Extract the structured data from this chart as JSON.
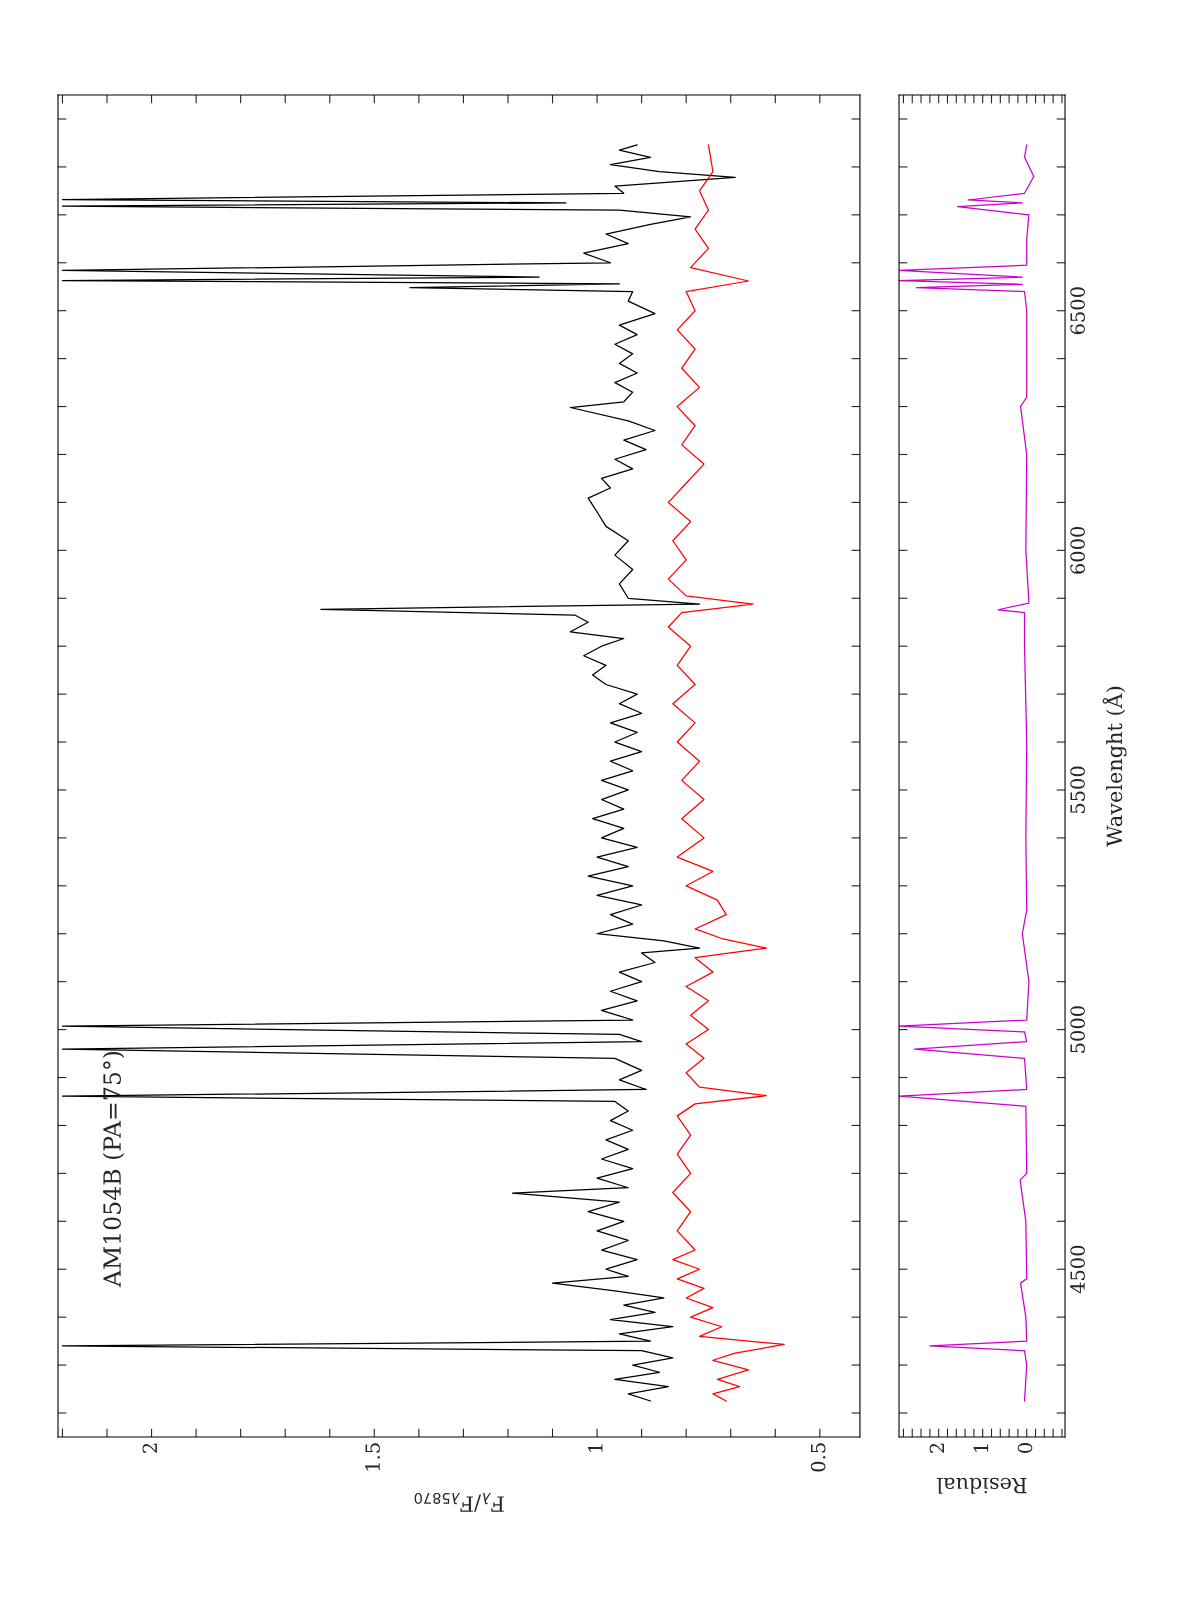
{
  "chart_data": [
    {
      "type": "line",
      "orientation": "horizontal",
      "xlabel": "F$_{λ}$/F$_{λ5870}$",
      "annotations": [
        "AM1054B (PA=75°)"
      ],
      "xlim": [
        2.21,
        0.41
      ],
      "xticks": [
        {
          "value": 2.2,
          "label": null
        },
        {
          "value": 2.1,
          "label": null
        },
        2,
        {
          "value": 1.9,
          "label": null
        },
        {
          "value": 1.8,
          "label": null
        },
        {
          "value": 1.7,
          "label": null
        },
        {
          "value": 1.6,
          "label": null
        },
        1.5,
        {
          "value": 1.4,
          "label": null
        },
        {
          "value": 1.3,
          "label": null
        },
        {
          "value": 1.2,
          "label": null
        },
        {
          "value": 1.1,
          "label": null
        },
        1,
        {
          "value": 0.9,
          "label": null
        },
        {
          "value": 0.8,
          "label": null
        },
        {
          "value": 0.7,
          "label": null
        },
        {
          "value": 0.6,
          "label": null
        },
        0.5
      ],
      "ylim": [
        4150,
        6950
      ],
      "yticks": [
        {
          "value": 4200,
          "label": null
        },
        {
          "value": 4300,
          "label": null
        },
        {
          "value": 4400,
          "label": null
        },
        4500,
        {
          "value": 4600,
          "label": null
        },
        {
          "value": 4700,
          "label": null
        },
        {
          "value": 4800,
          "label": null
        },
        {
          "value": 4900,
          "label": null
        },
        5000,
        {
          "value": 5100,
          "label": null
        },
        {
          "value": 5200,
          "label": null
        },
        {
          "value": 5300,
          "label": null
        },
        {
          "value": 5400,
          "label": null
        },
        5500,
        {
          "value": 5600,
          "label": null
        },
        {
          "value": 5700,
          "label": null
        },
        {
          "value": 5800,
          "label": null
        },
        {
          "value": 5900,
          "label": null
        },
        6000,
        {
          "value": 6100,
          "label": null
        },
        {
          "value": 6200,
          "label": null
        },
        {
          "value": 6300,
          "label": null
        },
        {
          "value": 6400,
          "label": null
        },
        6500,
        {
          "value": 6600,
          "label": null
        },
        {
          "value": 6700,
          "label": null
        },
        {
          "value": 6800,
          "label": null
        },
        {
          "value": 6900,
          "label": null
        }
      ],
      "tick_labels": "x",
      "series": [
        {
          "color": "#000000",
          "x": [
            4225,
            4240,
            4255,
            4270,
            4285,
            4300,
            4315,
            4330,
            4340,
            4350,
            4365,
            4380,
            4395,
            4410,
            4425,
            4440,
            4455,
            4471,
            4485,
            4500,
            4520,
            4540,
            4560,
            4580,
            4600,
            4620,
            4640,
            4659,
            4670,
            4690,
            4710,
            4730,
            4750,
            4770,
            4790,
            4810,
            4830,
            4850,
            4861,
            4875,
            4895,
            4915,
            4940,
            4959,
            4975,
            4990,
            5007,
            5020,
            5040,
            5060,
            5080,
            5100,
            5120,
            5140,
            5160,
            5170,
            5185,
            5200,
            5220,
            5240,
            5260,
            5280,
            5300,
            5320,
            5340,
            5360,
            5380,
            5400,
            5420,
            5440,
            5460,
            5480,
            5500,
            5520,
            5540,
            5560,
            5580,
            5600,
            5620,
            5640,
            5660,
            5680,
            5700,
            5720,
            5740,
            5760,
            5780,
            5800,
            5816,
            5830,
            5850,
            5865,
            5877,
            5888,
            5900,
            5930,
            5960,
            5990,
            6020,
            6050,
            6080,
            6109,
            6130,
            6150,
            6170,
            6190,
            6210,
            6230,
            6250,
            6270,
            6298,
            6310,
            6330,
            6350,
            6370,
            6390,
            6410,
            6430,
            6450,
            6470,
            6494,
            6520,
            6540,
            6548,
            6556,
            6563,
            6570,
            6584,
            6600,
            6620,
            6640,
            6660,
            6680,
            6696,
            6710,
            6718,
            6725,
            6732,
            6745,
            6760,
            6778,
            6790,
            6805,
            6820,
            6835,
            6846
          ],
          "values": [
            0.88,
            0.93,
            0.84,
            0.96,
            0.86,
            0.92,
            0.83,
            0.9,
            2.2,
            0.88,
            0.95,
            0.83,
            0.97,
            0.87,
            0.94,
            0.85,
            0.96,
            1.1,
            0.93,
            0.98,
            0.91,
            0.99,
            0.93,
            1.0,
            0.94,
            1.02,
            0.95,
            1.19,
            0.93,
            1.0,
            0.92,
            0.99,
            0.93,
            0.98,
            0.92,
            0.97,
            0.93,
            0.96,
            2.2,
            0.89,
            0.95,
            0.9,
            0.96,
            2.2,
            0.9,
            0.95,
            2.2,
            0.92,
            0.99,
            0.91,
            0.97,
            0.9,
            0.95,
            0.87,
            0.9,
            0.77,
            0.85,
            1.0,
            0.92,
            0.97,
            0.9,
            1.0,
            0.92,
            1.02,
            0.93,
            1.0,
            0.91,
            0.99,
            0.94,
            1.01,
            0.94,
            0.99,
            0.93,
            0.99,
            0.92,
            0.97,
            0.9,
            0.96,
            0.91,
            0.97,
            0.9,
            0.95,
            0.91,
            0.98,
            1.01,
            0.98,
            1.03,
            0.99,
            0.94,
            1.06,
            1.02,
            1.05,
            1.62,
            0.77,
            0.93,
            0.95,
            0.92,
            0.96,
            0.93,
            0.98,
            1.0,
            1.02,
            0.97,
            0.99,
            0.92,
            0.96,
            0.89,
            0.94,
            0.87,
            0.93,
            1.06,
            0.94,
            0.92,
            0.96,
            0.91,
            0.95,
            0.92,
            0.96,
            0.91,
            0.95,
            0.87,
            0.93,
            0.92,
            1.42,
            0.95,
            2.2,
            1.13,
            2.2,
            0.97,
            1.03,
            0.93,
            0.98,
            0.88,
            0.79,
            0.95,
            2.2,
            1.07,
            2.2,
            0.94,
            0.96,
            0.69,
            0.86,
            0.97,
            0.88,
            0.95,
            0.91
          ]
        },
        {
          "color": "#ff0000",
          "x": [
            4225,
            4240,
            4255,
            4270,
            4290,
            4310,
            4325,
            4343,
            4360,
            4380,
            4400,
            4420,
            4440,
            4460,
            4480,
            4500,
            4520,
            4540,
            4580,
            4620,
            4660,
            4700,
            4740,
            4780,
            4820,
            4845,
            4862,
            4880,
            4910,
            4940,
            4970,
            5000,
            5030,
            5060,
            5090,
            5120,
            5150,
            5170,
            5190,
            5210,
            5240,
            5270,
            5300,
            5330,
            5360,
            5400,
            5440,
            5480,
            5520,
            5560,
            5600,
            5640,
            5680,
            5720,
            5760,
            5800,
            5840,
            5870,
            5888,
            5905,
            5940,
            5980,
            6020,
            6060,
            6100,
            6140,
            6180,
            6220,
            6260,
            6300,
            6340,
            6380,
            6420,
            6460,
            6500,
            6540,
            6562,
            6590,
            6630,
            6670,
            6710,
            6750,
            6790,
            6846
          ],
          "values": [
            0.71,
            0.74,
            0.68,
            0.73,
            0.66,
            0.74,
            0.69,
            0.58,
            0.77,
            0.72,
            0.79,
            0.74,
            0.8,
            0.76,
            0.82,
            0.77,
            0.83,
            0.78,
            0.82,
            0.79,
            0.83,
            0.79,
            0.82,
            0.79,
            0.82,
            0.78,
            0.62,
            0.77,
            0.8,
            0.76,
            0.8,
            0.75,
            0.79,
            0.75,
            0.8,
            0.74,
            0.78,
            0.62,
            0.72,
            0.78,
            0.71,
            0.73,
            0.8,
            0.74,
            0.82,
            0.76,
            0.81,
            0.76,
            0.81,
            0.77,
            0.82,
            0.78,
            0.83,
            0.78,
            0.82,
            0.79,
            0.84,
            0.81,
            0.65,
            0.8,
            0.84,
            0.8,
            0.83,
            0.79,
            0.84,
            0.8,
            0.76,
            0.81,
            0.78,
            0.82,
            0.77,
            0.81,
            0.78,
            0.82,
            0.78,
            0.8,
            0.66,
            0.79,
            0.75,
            0.78,
            0.75,
            0.77,
            0.74,
            0.75
          ]
        }
      ]
    },
    {
      "type": "line",
      "orientation": "horizontal",
      "xlabel": "Residual",
      "ylabel": "Wavelenght (Å)",
      "xlim": [
        2.9,
        -0.87
      ],
      "xticks": [
        {
          "value": 2.8,
          "label": null
        },
        {
          "value": 2.6,
          "label": null
        },
        {
          "value": 2.4,
          "label": null
        },
        {
          "value": 2.2,
          "label": null
        },
        2,
        {
          "value": 1.8,
          "label": null
        },
        {
          "value": 1.6,
          "label": null
        },
        {
          "value": 1.4,
          "label": null
        },
        {
          "value": 1.2,
          "label": null
        },
        1,
        {
          "value": 0.8,
          "label": null
        },
        {
          "value": 0.6,
          "label": null
        },
        {
          "value": 0.4,
          "label": null
        },
        {
          "value": 0.2,
          "label": null
        },
        0,
        {
          "value": -0.2,
          "label": null
        },
        {
          "value": -0.4,
          "label": null
        },
        {
          "value": -0.6,
          "label": null
        },
        {
          "value": -0.8,
          "label": null
        }
      ],
      "ylim": [
        4150,
        6950
      ],
      "yticks": [
        {
          "value": 4200,
          "label": null
        },
        {
          "value": 4300,
          "label": null
        },
        {
          "value": 4400,
          "label": null
        },
        4500,
        {
          "value": 4600,
          "label": null
        },
        {
          "value": 4700,
          "label": null
        },
        {
          "value": 4800,
          "label": null
        },
        {
          "value": 4900,
          "label": null
        },
        5000,
        {
          "value": 5100,
          "label": null
        },
        {
          "value": 5200,
          "label": null
        },
        {
          "value": 5300,
          "label": null
        },
        {
          "value": 5400,
          "label": null
        },
        5500,
        {
          "value": 5600,
          "label": null
        },
        {
          "value": 5700,
          "label": null
        },
        {
          "value": 5800,
          "label": null
        },
        {
          "value": 5900,
          "label": null
        },
        6000,
        {
          "value": 6100,
          "label": null
        },
        {
          "value": 6200,
          "label": null
        },
        {
          "value": 6300,
          "label": null
        },
        {
          "value": 6400,
          "label": null
        },
        6500,
        {
          "value": 6600,
          "label": null
        },
        {
          "value": 6700,
          "label": null
        },
        {
          "value": 6800,
          "label": null
        },
        {
          "value": 6900,
          "label": null
        }
      ],
      "series": [
        {
          "color": "#cc00cc",
          "x": [
            4225,
            4300,
            4330,
            4340,
            4350,
            4400,
            4471,
            4480,
            4600,
            4686,
            4700,
            4840,
            4861,
            4875,
            4940,
            4959,
            4975,
            4995,
            5007,
            5020,
            5100,
            5200,
            5250,
            5400,
            5600,
            5800,
            5870,
            5876,
            5890,
            6000,
            6200,
            6300,
            6320,
            6500,
            6540,
            6548,
            6555,
            6563,
            6570,
            6584,
            6595,
            6650,
            6700,
            6717,
            6725,
            6731,
            6745,
            6780,
            6820,
            6846
          ],
          "values": [
            0.05,
            0.0,
            0.05,
            2.2,
            0.0,
            0.02,
            0.14,
            0.0,
            0.02,
            0.15,
            0.0,
            0.02,
            2.9,
            0.0,
            0.05,
            2.55,
            0.0,
            0.05,
            2.9,
            0.0,
            -0.05,
            0.1,
            0.0,
            0.02,
            0.0,
            0.05,
            0.05,
            0.65,
            -0.05,
            0.02,
            0.0,
            0.14,
            0.0,
            0.0,
            0.05,
            2.5,
            0.1,
            2.9,
            0.1,
            2.9,
            0.0,
            0.0,
            -0.05,
            1.57,
            0.1,
            1.33,
            0.05,
            -0.16,
            0.05,
            0.0
          ]
        }
      ]
    }
  ]
}
